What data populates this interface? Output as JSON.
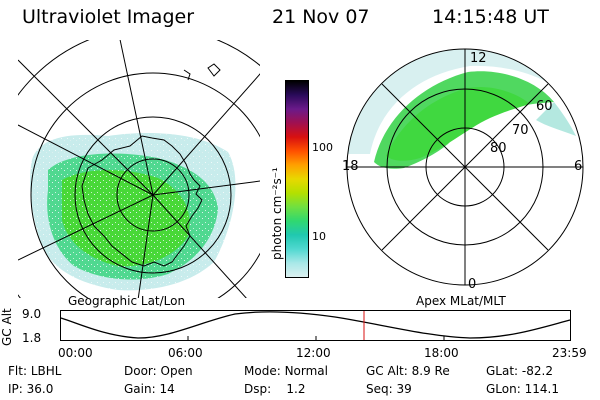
{
  "header": {
    "instrument": "Ultraviolet Imager",
    "date": "21 Nov 07",
    "time": "14:15:48 UT"
  },
  "left_panel": {
    "caption": "Geographic Lat/Lon"
  },
  "right_panel": {
    "caption": "Apex MLat/MLT",
    "mlt_labels": {
      "top": "12",
      "left": "18",
      "right": "6",
      "bottom": "0"
    },
    "lat_labels": [
      "60",
      "70",
      "80"
    ]
  },
  "colorbar": {
    "unit_label": "photon cm⁻²s⁻¹",
    "ticks": [
      "100",
      "10"
    ],
    "colors": [
      "#000000",
      "#2a0a5a",
      "#6a1a8a",
      "#a01050",
      "#d81010",
      "#ff5000",
      "#ffa000",
      "#e8d800",
      "#b4e000",
      "#70e040",
      "#30d870",
      "#20c8b0",
      "#50d8d0",
      "#a8e8e8",
      "#dcf0f0"
    ]
  },
  "timeline": {
    "y_axis_label": "GC Alt",
    "y_ticks": [
      "9.0",
      "1.8"
    ],
    "x_ticks": [
      "00:00",
      "06:00",
      "12:00",
      "18:00",
      "23:59"
    ],
    "marker_color": "#d81010"
  },
  "status": {
    "row1": [
      {
        "label": "Flt:",
        "value": "LBHL"
      },
      {
        "label": "Door:",
        "value": "Open"
      },
      {
        "label": "Mode:",
        "value": "Normal"
      },
      {
        "label": "GC Alt:",
        "value": "8.9 Re"
      },
      {
        "label": "GLat:",
        "value": "-82.2"
      }
    ],
    "row2": [
      {
        "label": "IP:",
        "value": "36.0"
      },
      {
        "label": "Gain:",
        "value": "14"
      },
      {
        "label": "Dsp:",
        "value": "1.2"
      },
      {
        "label": "Seq:",
        "value": "39"
      },
      {
        "label": "GLon:",
        "value": "114.1"
      }
    ]
  }
}
